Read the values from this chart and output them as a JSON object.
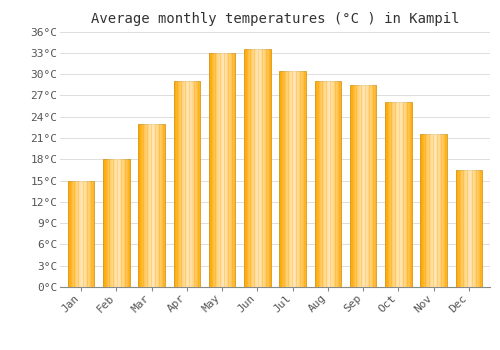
{
  "title": "Average monthly temperatures (°C ) in Kampil",
  "months": [
    "Jan",
    "Feb",
    "Mar",
    "Apr",
    "May",
    "Jun",
    "Jul",
    "Aug",
    "Sep",
    "Oct",
    "Nov",
    "Dec"
  ],
  "values": [
    15,
    18,
    23,
    29,
    33,
    33.5,
    30.5,
    29,
    28.5,
    26,
    21.5,
    16.5
  ],
  "bar_color": "#FFA500",
  "bar_edge_color": "#E08000",
  "ylim": [
    0,
    36
  ],
  "yticks": [
    0,
    3,
    6,
    9,
    12,
    15,
    18,
    21,
    24,
    27,
    30,
    33,
    36
  ],
  "ytick_labels": [
    "0°C",
    "3°C",
    "6°C",
    "9°C",
    "12°C",
    "15°C",
    "18°C",
    "21°C",
    "24°C",
    "27°C",
    "30°C",
    "33°C",
    "36°C"
  ],
  "background_color": "#FFFFFF",
  "grid_color": "#DDDDDD",
  "title_fontsize": 10,
  "tick_fontsize": 8,
  "font_family": "monospace"
}
